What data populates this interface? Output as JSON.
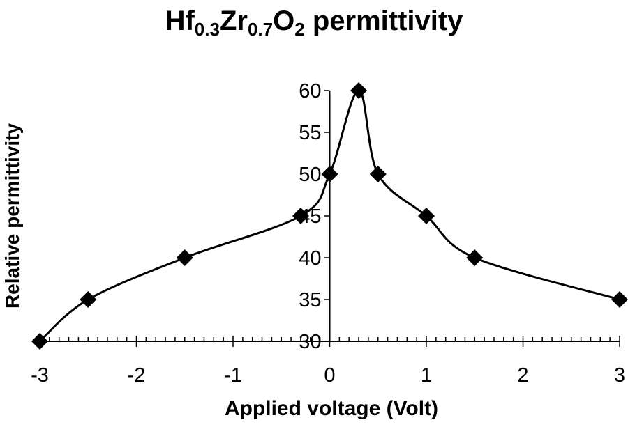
{
  "chart_data": {
    "type": "line",
    "title_main": "Hf",
    "title_sub1": "0.3",
    "title_mid": "Zr",
    "title_sub2": "0.7",
    "title_o": "O",
    "title_sub3": "2",
    "title_tail": " permittivity",
    "xlabel": "Applied voltage (Volt)",
    "ylabel": "Relative permittivity",
    "xlim": [
      -3,
      3
    ],
    "ylim": [
      30,
      60
    ],
    "xticks": [
      "-3",
      "-2",
      "-1",
      "0",
      "1",
      "2",
      "3"
    ],
    "yticks": [
      "30",
      "35",
      "40",
      "45",
      "50",
      "55",
      "60"
    ],
    "marker": "diamond",
    "line_color": "#000000",
    "series": [
      {
        "x": [
          -3,
          -2.5,
          -1.5,
          -0.3,
          0,
          0.3,
          0.5,
          1,
          1.5,
          3
        ],
        "y": [
          30,
          35,
          40,
          45,
          50,
          60,
          50,
          45,
          40,
          35
        ]
      }
    ]
  }
}
